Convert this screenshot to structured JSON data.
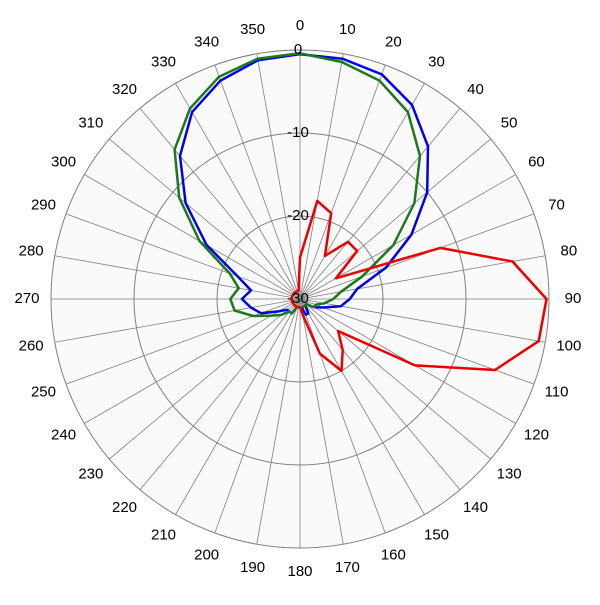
{
  "chart_data": {
    "type": "polar",
    "x": [
      0,
      10,
      20,
      30,
      40,
      50,
      60,
      70,
      80,
      90,
      100,
      110,
      120,
      130,
      140,
      150,
      160,
      170,
      180,
      190,
      200,
      210,
      220,
      230,
      240,
      250,
      260,
      270,
      280,
      290,
      300,
      310,
      320,
      330,
      340,
      350
    ],
    "series": [
      {
        "color": "#0000ee",
        "values": [
          -0.5,
          -0.6,
          -1.2,
          -3,
          -6,
          -10,
          -14.5,
          -19,
          -23,
          -24,
          -25,
          -27,
          -28,
          -29,
          -29,
          -28,
          -28,
          -29,
          -29,
          -29,
          -29,
          -28,
          -28,
          -28,
          -27,
          -25,
          -24,
          -23,
          -24,
          -22,
          -17,
          -12,
          -7.5,
          -4,
          -2,
          -0.8
        ]
      },
      {
        "color": "#1a7a1a",
        "values": [
          -0.4,
          -1,
          -2,
          -4,
          -7.5,
          -12,
          -17,
          -22,
          -25,
          -26,
          -27,
          -28,
          -28,
          -29,
          -29,
          -29,
          -29,
          -29,
          -29,
          -29,
          -29,
          -28,
          -28,
          -27,
          -26,
          -24,
          -22,
          -21.6,
          -22.5,
          -21,
          -16,
          -11,
          -6.5,
          -3.5,
          -1.5,
          -0.6
        ]
      },
      {
        "color": "#ee0000",
        "values": [
          -25,
          -18,
          -19,
          -24,
          -21,
          -21,
          -25,
          -12,
          -4,
          -0.3,
          -0.8,
          -5,
          -14,
          -24,
          -22,
          -20,
          -23,
          -28,
          -29,
          -29,
          -29,
          -29,
          -29,
          -29,
          -29,
          -29,
          -29,
          -29,
          -29,
          -29,
          -29,
          -29,
          -29,
          -29,
          -29,
          -29
        ]
      }
    ],
    "xticks": [
      0,
      10,
      20,
      30,
      40,
      50,
      60,
      70,
      80,
      90,
      100,
      110,
      120,
      130,
      140,
      150,
      160,
      170,
      180,
      190,
      200,
      210,
      220,
      230,
      240,
      250,
      260,
      270,
      280,
      290,
      300,
      310,
      320,
      330,
      340,
      350
    ],
    "ylim": [
      -30,
      0
    ],
    "yticks": [
      -30,
      -20,
      -10,
      0
    ],
    "grid": true
  }
}
